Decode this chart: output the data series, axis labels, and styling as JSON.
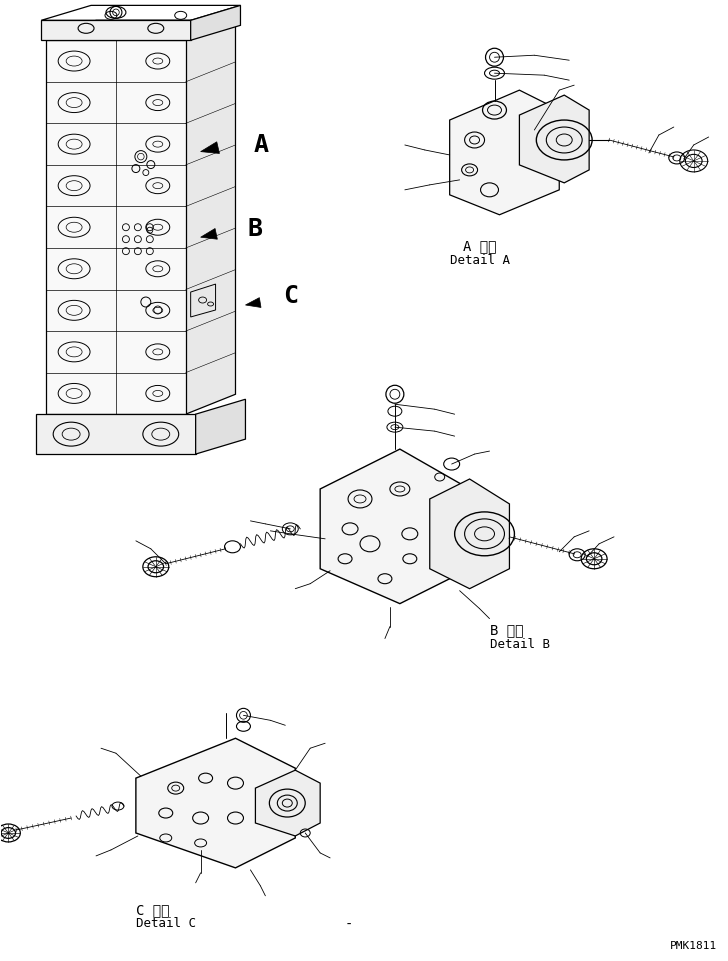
{
  "bg_color": "#ffffff",
  "line_color": "#000000",
  "label_A_jp": "A 詳細",
  "label_A_en": "Detail A",
  "label_B_jp": "B 詳細",
  "label_B_en": "Detail B",
  "label_C_jp": "C 詳細",
  "label_C_en": "Detail C",
  "watermark": "PMK1811",
  "font_size_label": 9,
  "font_size_ABC": 18,
  "font_size_watermark": 8,
  "font_name": "monospace"
}
